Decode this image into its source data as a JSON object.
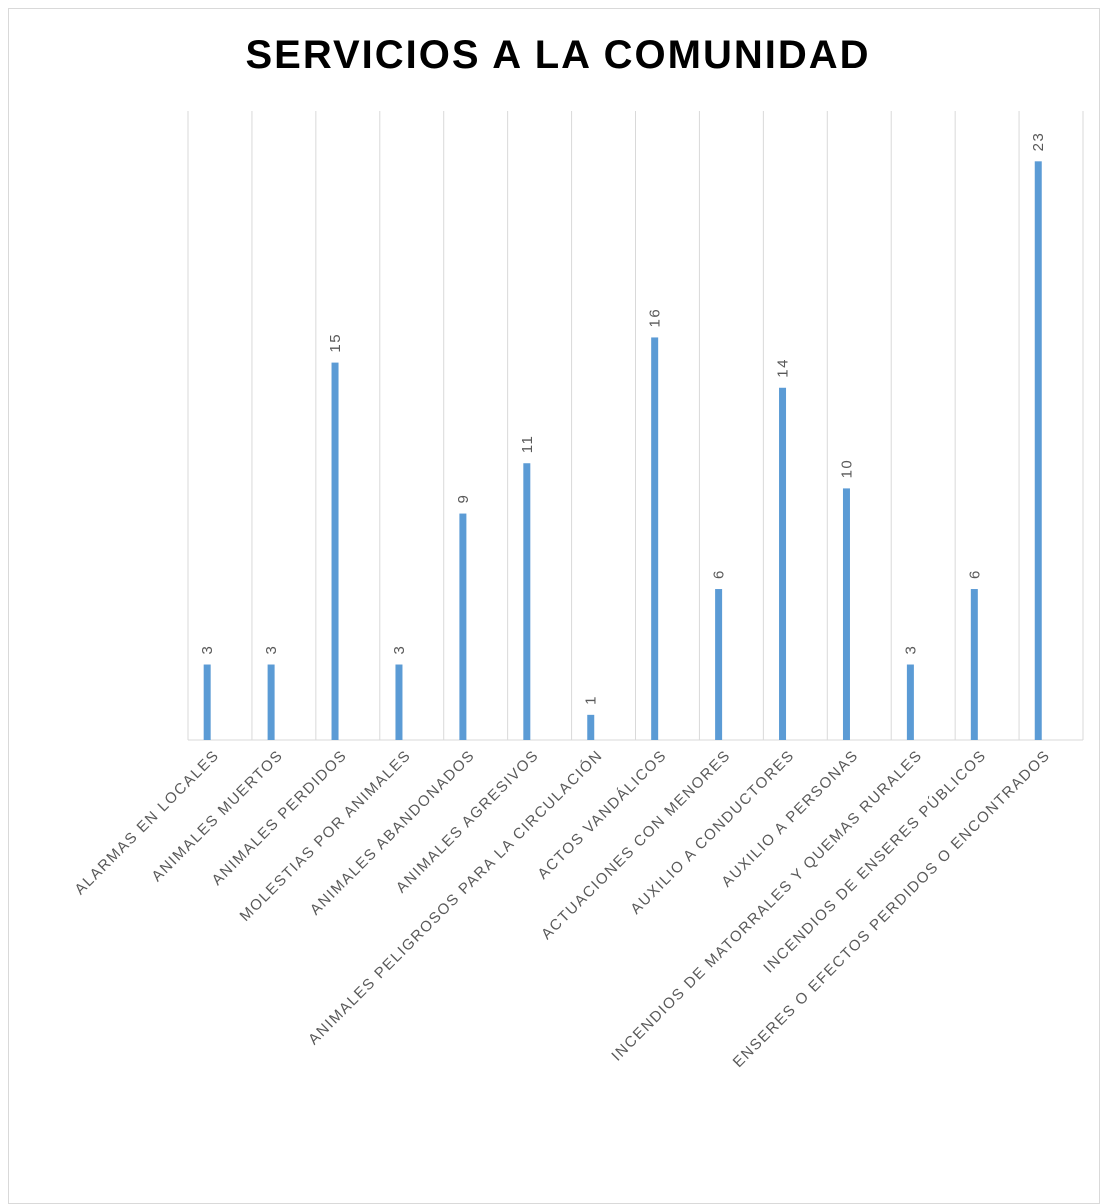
{
  "chart_data": {
    "type": "bar",
    "title": "SERVICIOS A LA COMUNIDAD",
    "categories": [
      "ALARMAS EN LOCALES",
      "ANIMALES MUERTOS",
      "ANIMALES PERDIDOS",
      "MOLESTIAS POR ANIMALES",
      "ANIMALES ABANDONADOS",
      "ANIMALES AGRESIVOS",
      "ANIMALES PELIGROSOS PARA LA CIRCULACIÓN",
      "ACTOS VANDÁLICOS",
      "ACTUACIONES CON MENORES",
      "AUXILIO A CONDUCTORES",
      "AUXILIO A PERSONAS",
      "INCENDIOS DE MATORRALES Y QUEMAS RURALES",
      "INCENDIOS DE ENSERES PÚBLICOS",
      "ENSERES O EFECTOS PERDIDOS O ENCONTRADOS"
    ],
    "values": [
      3,
      3,
      15,
      3,
      9,
      11,
      1,
      16,
      6,
      14,
      10,
      3,
      6,
      23
    ],
    "color": "#5b9bd5",
    "ylim": [
      0,
      25
    ]
  }
}
